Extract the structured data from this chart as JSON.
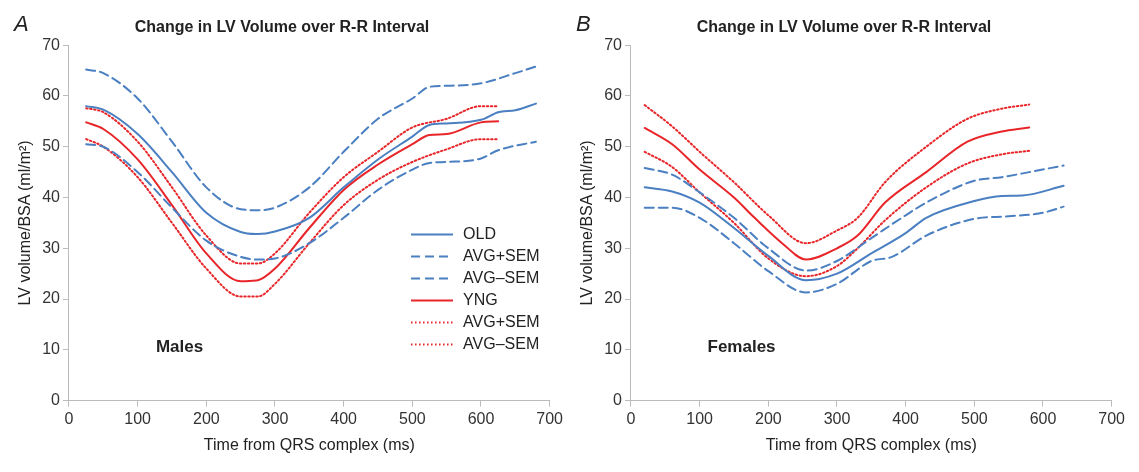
{
  "chart_data": [
    {
      "type": "line",
      "title": "Change in LV Volume over R-R Interval",
      "xlabel": "Time from QRS complex (ms)",
      "ylabel": "LV volume/BSA (ml/m²)",
      "annotations": [
        "A",
        "Males"
      ],
      "xlim": [
        0,
        700
      ],
      "xticks": [
        0,
        100,
        200,
        300,
        400,
        500,
        600,
        700
      ],
      "ylim": [
        0,
        70
      ],
      "yticks": [
        0,
        10,
        20,
        30,
        40,
        50,
        60,
        70
      ],
      "legend": "bottom right",
      "marker": "none",
      "series": [
        {
          "name": "OLD",
          "color": "#4a7fc1",
          "line_style": "solid",
          "x": [
            25,
            50,
            100,
            150,
            200,
            250,
            275,
            300,
            350,
            400,
            450,
            500,
            525,
            550,
            600,
            625,
            650,
            680
          ],
          "values": [
            58,
            57.3,
            52.5,
            45,
            37,
            33.2,
            32.8,
            33.3,
            36,
            42,
            47.5,
            52,
            54.3,
            54.6,
            55.3,
            56.8,
            57.2,
            58.5
          ]
        },
        {
          "name": "AVG+SEM",
          "color": "#4a7fc1",
          "line_style": "dashed",
          "x": [
            25,
            50,
            100,
            150,
            200,
            250,
            275,
            300,
            350,
            400,
            450,
            500,
            525,
            550,
            600,
            650,
            680
          ],
          "values": [
            65.2,
            64.5,
            59.5,
            51,
            42,
            37.7,
            37.5,
            38,
            42,
            49,
            55.5,
            59.5,
            61.8,
            62,
            62.5,
            64.5,
            65.8
          ]
        },
        {
          "name": "AVG–SEM",
          "color": "#4a7fc1",
          "line_style": "dashed",
          "x": [
            25,
            50,
            100,
            150,
            200,
            250,
            275,
            300,
            350,
            400,
            450,
            500,
            525,
            550,
            600,
            625,
            680
          ],
          "values": [
            50.5,
            50,
            45,
            38,
            31.5,
            28.3,
            27.8,
            28,
            31,
            36,
            41.5,
            45.5,
            46.8,
            47,
            47.7,
            49.3,
            51
          ]
        },
        {
          "name": "YNG",
          "color": "#e8262a",
          "line_style": "solid",
          "x": [
            25,
            50,
            100,
            150,
            200,
            250,
            275,
            300,
            350,
            400,
            450,
            500,
            525,
            550,
            600,
            625
          ],
          "values": [
            54.8,
            53.5,
            47.5,
            38.5,
            29,
            23.5,
            23.7,
            26,
            34,
            41.5,
            46.5,
            50.5,
            52.3,
            52.5,
            54.8,
            55
          ]
        },
        {
          "name": "AVG+SEM",
          "color": "#e8262a",
          "line_style": "dotted",
          "x": [
            25,
            50,
            100,
            150,
            200,
            250,
            275,
            300,
            350,
            400,
            450,
            500,
            550,
            600,
            625
          ],
          "values": [
            57.6,
            56.8,
            51,
            42,
            32.5,
            27,
            27,
            29,
            37,
            44,
            49,
            53.8,
            55.5,
            58,
            58
          ]
        },
        {
          "name": "AVG–SEM",
          "color": "#e8262a",
          "line_style": "dotted",
          "x": [
            25,
            50,
            100,
            150,
            200,
            250,
            275,
            300,
            350,
            400,
            450,
            500,
            550,
            600,
            625
          ],
          "values": [
            51.5,
            50,
            44,
            35,
            26,
            20.5,
            20.5,
            23,
            31,
            38.5,
            43.5,
            47,
            49.5,
            51.5,
            51.5
          ]
        }
      ]
    },
    {
      "type": "line",
      "title": "Change in LV Volume over R-R Interval",
      "xlabel": "Time from QRS complex (ms)",
      "ylabel": "LV volume/BSA (ml/m²)",
      "annotations": [
        "B",
        "Females"
      ],
      "xlim": [
        0,
        700
      ],
      "xticks": [
        0,
        100,
        200,
        300,
        400,
        500,
        600,
        700
      ],
      "ylim": [
        0,
        70
      ],
      "yticks": [
        0,
        10,
        20,
        30,
        40,
        50,
        60,
        70
      ],
      "marker": "none",
      "series": [
        {
          "color": "#4a7fc1",
          "line_style": "solid",
          "x": [
            20,
            60,
            100,
            150,
            200,
            255,
            300,
            350,
            400,
            430,
            500,
            540,
            570,
            630
          ],
          "values": [
            42,
            41.2,
            39,
            34,
            28.5,
            23.7,
            25,
            29,
            33,
            36,
            39.3,
            40.3,
            40.4,
            42.3
          ]
        },
        {
          "color": "#4a7fc1",
          "line_style": "dashed",
          "x": [
            20,
            60,
            100,
            150,
            200,
            255,
            300,
            350,
            400,
            430,
            500,
            540,
            580,
            630
          ],
          "values": [
            45.8,
            44.5,
            41,
            36,
            30,
            25.6,
            27.5,
            32,
            36.5,
            39,
            43.3,
            44,
            45,
            46.3
          ]
        },
        {
          "color": "#4a7fc1",
          "line_style": "dashed",
          "x": [
            20,
            60,
            100,
            150,
            200,
            255,
            300,
            350,
            380,
            430,
            500,
            550,
            600,
            630
          ],
          "values": [
            38,
            38,
            36,
            31,
            25.5,
            21.3,
            23,
            27.5,
            28.3,
            32.5,
            35.8,
            36.3,
            37,
            38.2
          ]
        },
        {
          "color": "#e8262a",
          "line_style": "solid",
          "x": [
            20,
            60,
            100,
            150,
            180,
            220,
            255,
            300,
            330,
            370,
            430,
            490,
            540,
            580
          ],
          "values": [
            53.7,
            50.5,
            45.5,
            40,
            36,
            31,
            27.8,
            30,
            32.5,
            39,
            45,
            51,
            53,
            53.8
          ]
        },
        {
          "color": "#e8262a",
          "line_style": "dotted",
          "x": [
            20,
            60,
            100,
            150,
            200,
            255,
            300,
            330,
            370,
            430,
            490,
            540,
            580
          ],
          "values": [
            58.2,
            54,
            49,
            43,
            36.5,
            31,
            33.5,
            36,
            43,
            50,
            55.5,
            57.5,
            58.3
          ]
        },
        {
          "color": "#e8262a",
          "line_style": "dotted",
          "x": [
            20,
            60,
            100,
            150,
            200,
            255,
            300,
            330,
            370,
            430,
            490,
            540,
            580
          ],
          "values": [
            49,
            46,
            41,
            35,
            28,
            24.5,
            26.5,
            30,
            35.5,
            42,
            46.7,
            48.5,
            49.2
          ]
        }
      ]
    }
  ]
}
